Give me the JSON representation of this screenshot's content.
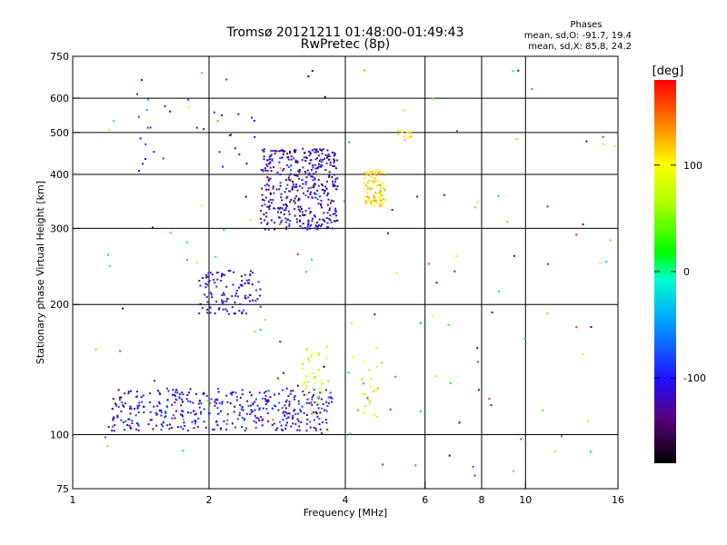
{
  "chart_data": {
    "type": "scatter",
    "title": "Tromsø 20121211 01:48:00-01:49:43",
    "subtitle": "RwPretec (8p)",
    "xlabel": "Frequency [MHz]",
    "ylabel": "Stationary phase Virtual Height [km]",
    "xscale": "log",
    "yscale": "log",
    "xlim": [
      1,
      16
    ],
    "ylim": [
      75,
      750
    ],
    "xticks": [
      1,
      2,
      4,
      6,
      8,
      10,
      16
    ],
    "yticks": [
      75,
      100,
      200,
      300,
      400,
      500,
      600,
      750
    ],
    "grid": true,
    "colorbar": {
      "label": "[deg]",
      "range": [
        -180,
        180
      ],
      "ticks": [
        -100,
        0,
        100
      ]
    },
    "stats": {
      "heading": "Phases",
      "line_o": "mean, sd,O: -91.7, 19.4",
      "line_x": "mean, sd,X: 85.8, 24.2"
    },
    "clusters": [
      {
        "kind": "band",
        "f": [
          1.22,
          3.75
        ],
        "h": [
          102,
          128
        ],
        "phase": [
          -140,
          -70
        ],
        "n": 420
      },
      {
        "kind": "band",
        "f": [
          1.9,
          2.6
        ],
        "h": [
          190,
          240
        ],
        "phase": [
          -130,
          -85
        ],
        "n": 110
      },
      {
        "kind": "band",
        "f": [
          2.6,
          3.85
        ],
        "h": [
          298,
          460
        ],
        "phase": [
          -160,
          -80
        ],
        "n": 430
      },
      {
        "kind": "blob",
        "f": [
          4.4,
          4.9
        ],
        "h": [
          335,
          410
        ],
        "phase": [
          80,
          135
        ],
        "n": 90
      },
      {
        "kind": "blob",
        "f": [
          3.2,
          3.7
        ],
        "h": [
          118,
          160
        ],
        "phase": [
          50,
          120
        ],
        "n": 35
      },
      {
        "kind": "blob",
        "f": [
          4.35,
          4.75
        ],
        "h": [
          108,
          150
        ],
        "phase": [
          70,
          120
        ],
        "n": 20
      },
      {
        "kind": "blob",
        "f": [
          5.2,
          5.6
        ],
        "h": [
          480,
          510
        ],
        "phase": [
          90,
          130
        ],
        "n": 12
      },
      {
        "kind": "band",
        "f": [
          1.3,
          2.6
        ],
        "h": [
          400,
          620
        ],
        "phase": [
          -120,
          -80
        ],
        "n": 25
      },
      {
        "kind": "band",
        "f": [
          1.05,
          16
        ],
        "h": [
          80,
          700
        ],
        "phase": [
          -180,
          180
        ],
        "n": 140
      }
    ]
  }
}
